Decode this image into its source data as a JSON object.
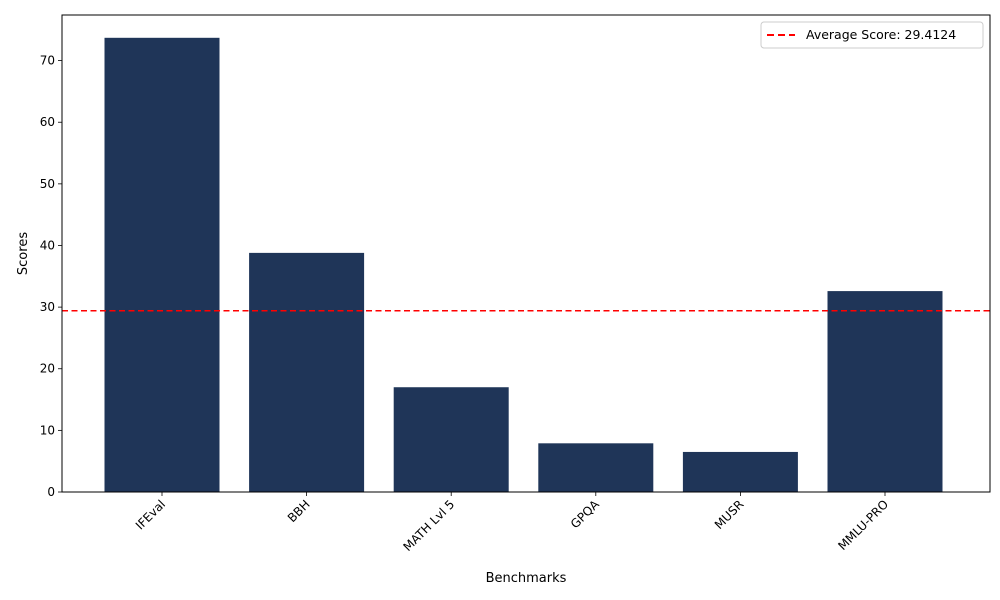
{
  "chart_data": {
    "type": "bar",
    "categories": [
      "IFEval",
      "BBH",
      "MATH Lvl 5",
      "GPQA",
      "MUSR",
      "MMLU-PRO"
    ],
    "values": [
      73.7,
      38.8,
      17.0,
      7.9,
      6.5,
      32.6
    ],
    "xlabel": "Benchmarks",
    "ylabel": "Scores",
    "ylim": [
      0,
      77.4
    ],
    "yticks": [
      0,
      10,
      20,
      30,
      40,
      50,
      60,
      70
    ],
    "bar_color": "#1f3558",
    "grid": false,
    "reference_line": {
      "value": 29.4124,
      "label": "Average Score: 29.4124",
      "color": "#ff0000",
      "style": "dashed"
    },
    "legend": {
      "placement": "top-right",
      "entries": [
        "Average Score: 29.4124"
      ]
    }
  }
}
